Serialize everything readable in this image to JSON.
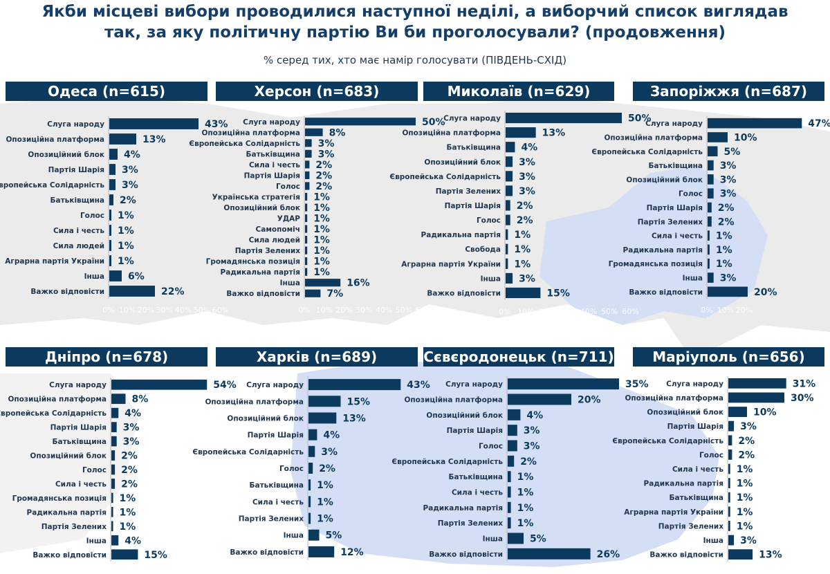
{
  "title_line1": "Якби місцеві вибори проводилися наступної неділі, а виборчий список виглядав",
  "title_line2": "так, за яку політичну партію Ви би проголосували? (продовження)",
  "subtitle": "% серед тих, хто має намір голосувати (ПІВДЕНЬ-СХІД)",
  "colors": {
    "bar": "#0b3a5e",
    "header": "#0b3a5e",
    "map_gray": "#ebebeb",
    "map_blue": "#d4def5"
  },
  "chart_data": [
    {
      "type": "bar",
      "orientation": "horizontal",
      "title": "Одеса (n=615)",
      "xlim": [
        0,
        60
      ],
      "ticks": [
        "0%",
        "10%",
        "20%",
        "30%",
        "40%",
        "50%",
        "60%"
      ],
      "categories": [
        "Слуга народу",
        "Опозиційна платформа",
        "Опозиційний блок",
        "Партія Шарія",
        "Європейська Солідарність",
        "Батьківщина",
        "Голос",
        "Сила і честь",
        "Сила людей",
        "Аграрна партія України",
        "Інша",
        "Важко відповісти"
      ],
      "values": [
        43,
        13,
        4,
        3,
        3,
        2,
        1,
        1,
        1,
        1,
        6,
        22
      ]
    },
    {
      "type": "bar",
      "orientation": "horizontal",
      "title": "Херсон (n=683)",
      "xlim": [
        0,
        60
      ],
      "ticks": [
        "0%",
        "10%",
        "20%",
        "30%",
        "40%",
        "50%",
        "60%"
      ],
      "categories": [
        "Слуга народу",
        "Опозиційна платформа",
        "Європейська Солідарність",
        "Батьківщина",
        "Сила і честь",
        "Партія Шарія",
        "Голос",
        "Українська стратегія",
        "Опозиційний блок",
        "УДАР",
        "Самопоміч",
        "Сила людей",
        "Партія Зелених",
        "Громадянська позиція",
        "Радикальна партія",
        "Інша",
        "Важко відповісти"
      ],
      "values": [
        50,
        8,
        3,
        3,
        2,
        2,
        2,
        1,
        1,
        1,
        1,
        1,
        1,
        1,
        1,
        16,
        7
      ]
    },
    {
      "type": "bar",
      "orientation": "horizontal",
      "title": "Миколаїв (n=629)",
      "xlim": [
        0,
        60
      ],
      "ticks": [
        "0%",
        "10%",
        "20%",
        "30%",
        "40%",
        "50%",
        "60%"
      ],
      "categories": [
        "Слуга народу",
        "Опозиційна платформа",
        "Батьківщина",
        "Опозиційний блок",
        "Європейська Солідарність",
        "Партія Зелених",
        "Партія Шарія",
        "Голос",
        "Радикальна партія",
        "Свобода",
        "Аграрна партія України",
        "Інша",
        "Важко відповісти"
      ],
      "values": [
        50,
        13,
        4,
        3,
        3,
        3,
        2,
        2,
        1,
        1,
        1,
        3,
        15
      ]
    },
    {
      "type": "bar",
      "orientation": "horizontal",
      "title": "Запоріжжя (n=687)",
      "xlim": [
        0,
        60
      ],
      "ticks": [
        "0%",
        "10%",
        "20%"
      ],
      "categories": [
        "Слуга народу",
        "Опозиційна платформа",
        "Європейська Солідарність",
        "Батьківщина",
        "Опозиційний блок",
        "Голос",
        "Партія Шарія",
        "Партія Зелених",
        "Сила і честь",
        "Радикальна партія",
        "Громадянська позиція",
        "Інша",
        "Важко відповісти"
      ],
      "values": [
        47,
        10,
        5,
        3,
        3,
        3,
        2,
        2,
        1,
        1,
        1,
        3,
        20
      ]
    },
    {
      "type": "bar",
      "orientation": "horizontal",
      "title": "Дніпро (n=678)",
      "categories": [
        "Слуга народу",
        "Опозиційна платформа",
        "Європейська Солідарність",
        "Партія Шарія",
        "Батьківщина",
        "Опозиційний блок",
        "Голос",
        "Сила і честь",
        "Громадянська позиція",
        "Радикальна партія",
        "Партія Зелених",
        "Інша",
        "Важко відповісти"
      ],
      "values": [
        54,
        8,
        4,
        3,
        3,
        2,
        2,
        2,
        1,
        1,
        1,
        4,
        15
      ]
    },
    {
      "type": "bar",
      "orientation": "horizontal",
      "title": "Харків (n=689)",
      "categories": [
        "Слуга народу",
        "Опозиційна платформа",
        "Опозиційний блок",
        "Партія Шарія",
        "Європейська Солідарність",
        "Голос",
        "Батьківщина",
        "Сила і честь",
        "Партія Зелених",
        "Інша",
        "Важко відповісти"
      ],
      "values": [
        43,
        15,
        13,
        4,
        3,
        2,
        1,
        1,
        1,
        5,
        12
      ]
    },
    {
      "type": "bar",
      "orientation": "horizontal",
      "title": "Сєвєродонецьк (n=711)",
      "categories": [
        "Слуга народу",
        "Опозиційна платформа",
        "Опозиційний блок",
        "Партія Шарія",
        "Голос",
        "Європейська Солідарність",
        "Батьківщина",
        "Сила і честь",
        "Радикальна партія",
        "Партія Зелених",
        "Інша",
        "Важко відповісти"
      ],
      "values": [
        35,
        20,
        4,
        3,
        3,
        2,
        1,
        1,
        1,
        1,
        5,
        26
      ]
    },
    {
      "type": "bar",
      "orientation": "horizontal",
      "title": "Маріуполь (n=656)",
      "categories": [
        "Слуга народу",
        "Опозиційна платформа",
        "Опозиційний блок",
        "Партія Шарія",
        "Європейська Солідарність",
        "Голос",
        "Сила і честь",
        "Радикальна партія",
        "Батьківщина",
        "Аграрна партія України",
        "Партія Зелених",
        "Інша",
        "Важко відповісти"
      ],
      "values": [
        31,
        30,
        10,
        3,
        2,
        2,
        1,
        1,
        1,
        1,
        1,
        3,
        13
      ]
    }
  ]
}
